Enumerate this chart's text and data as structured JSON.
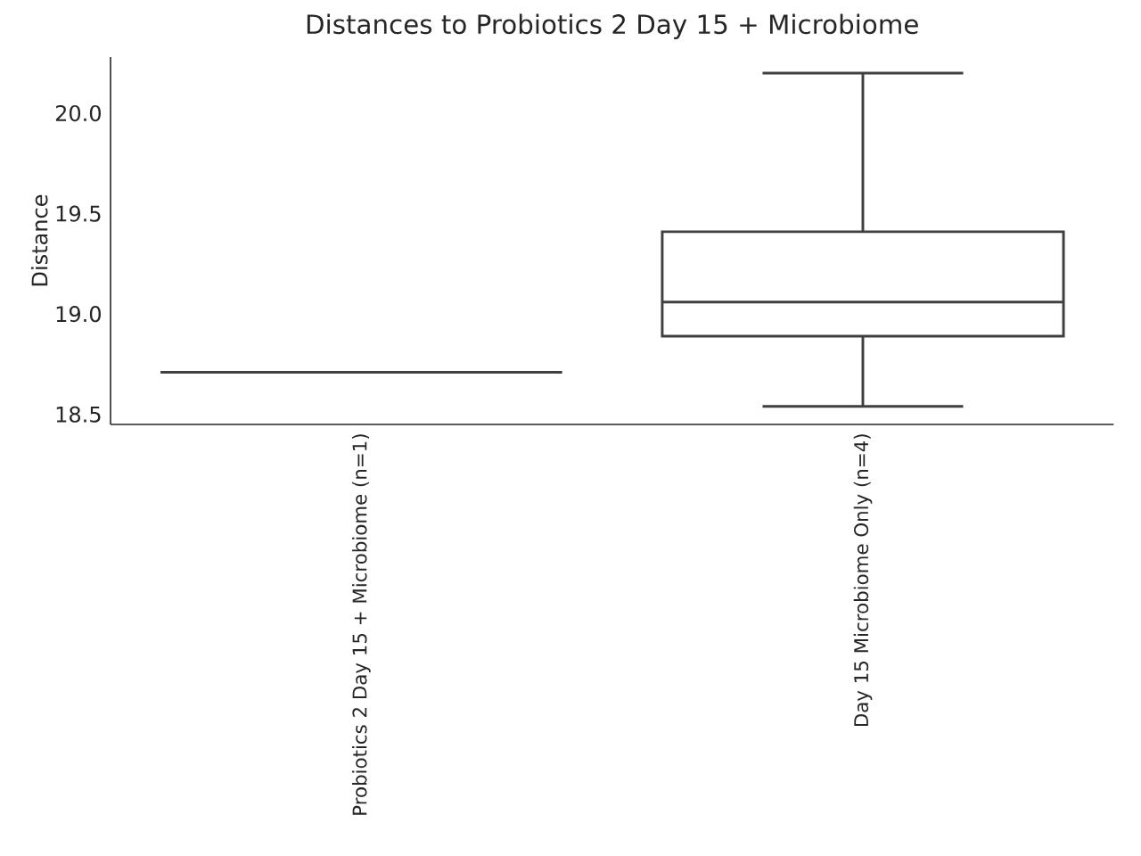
{
  "chart_data": {
    "type": "box",
    "title": "Distances to Probiotics 2 Day 15 + Microbiome",
    "ylabel": "Distance",
    "categories": [
      "Probiotics 2 Day 15 + Microbiome (n=1)",
      "Day 15 Microbiome Only (n=4)"
    ],
    "boxes": [
      {
        "low": 18.71,
        "q1": 18.71,
        "median": 18.71,
        "q3": 18.71,
        "high": 18.71
      },
      {
        "low": 18.54,
        "q1": 18.89,
        "median": 19.06,
        "q3": 19.41,
        "high": 20.2
      }
    ],
    "color": "#3f3f3f",
    "ylim": [
      18.45,
      20.28
    ],
    "yticks": [
      18.5,
      {
        "value": 19.0,
        "label": "19.0"
      },
      19.5,
      {
        "value": 20.0,
        "label": "20.0"
      }
    ],
    "grid": false
  }
}
